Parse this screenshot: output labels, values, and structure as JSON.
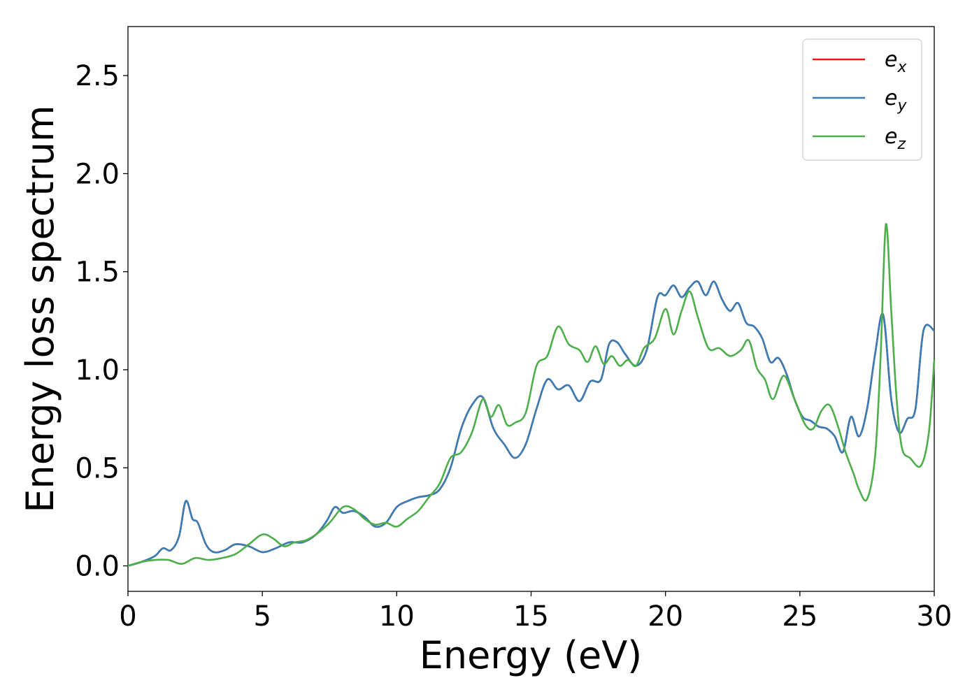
{
  "chart_data": {
    "type": "line",
    "xlabel": "Energy (eV)",
    "ylabel": "Energy loss spectrum",
    "xlim": [
      0,
      30
    ],
    "ylim": [
      -0.13,
      2.75
    ],
    "xticks": [
      0,
      5,
      10,
      15,
      20,
      25,
      30
    ],
    "xtick_labels": [
      "0",
      "5",
      "10",
      "15",
      "20",
      "25",
      "30"
    ],
    "yticks": [
      0.0,
      0.5,
      1.0,
      1.5,
      2.0,
      2.5
    ],
    "ytick_labels": [
      "0.0",
      "0.5",
      "1.0",
      "1.5",
      "2.0",
      "2.5"
    ],
    "grid": false,
    "legend_position": "top-right",
    "series": [
      {
        "name": "e",
        "sub": "x",
        "color": "#e41a1c",
        "x": [
          0,
          0.5,
          1,
          1.3,
          1.6,
          1.9,
          2.15,
          2.4,
          2.6,
          2.9,
          3.2,
          3.6,
          4,
          4.5,
          5,
          5.5,
          6,
          6.5,
          7,
          7.4,
          7.7,
          8,
          8.4,
          8.8,
          9.2,
          9.6,
          10,
          10.4,
          10.8,
          11.2,
          11.6,
          12,
          12.4,
          12.8,
          13.2,
          13.6,
          14,
          14.4,
          14.8,
          15.2,
          15.6,
          16,
          16.4,
          16.8,
          17.2,
          17.6,
          17.9,
          18.2,
          18.5,
          18.9,
          19.3,
          19.7,
          20,
          20.3,
          20.6,
          20.9,
          21.2,
          21.5,
          21.8,
          22.1,
          22.4,
          22.7,
          23,
          23.3,
          23.6,
          23.9,
          24.2,
          24.5,
          24.8,
          25.1,
          25.4,
          25.7,
          26,
          26.3,
          26.6,
          26.9,
          27.2,
          27.5,
          27.8,
          28.1,
          28.4,
          28.7,
          29,
          29.3,
          29.6,
          30
        ],
        "y": [
          0,
          0.02,
          0.05,
          0.09,
          0.08,
          0.15,
          0.33,
          0.24,
          0.22,
          0.11,
          0.07,
          0.08,
          0.11,
          0.1,
          0.07,
          0.09,
          0.12,
          0.12,
          0.16,
          0.23,
          0.3,
          0.27,
          0.28,
          0.25,
          0.2,
          0.22,
          0.3,
          0.33,
          0.35,
          0.36,
          0.39,
          0.5,
          0.7,
          0.82,
          0.86,
          0.7,
          0.62,
          0.55,
          0.62,
          0.8,
          0.95,
          0.9,
          0.92,
          0.84,
          0.94,
          0.95,
          1.13,
          1.14,
          1.08,
          1.02,
          1.1,
          1.37,
          1.38,
          1.43,
          1.37,
          1.42,
          1.45,
          1.38,
          1.45,
          1.36,
          1.3,
          1.34,
          1.24,
          1.22,
          1.16,
          1.04,
          1.06,
          0.98,
          0.85,
          0.76,
          0.74,
          0.71,
          0.7,
          0.66,
          0.58,
          0.76,
          0.66,
          0.8,
          1.08,
          1.28,
          0.85,
          0.68,
          0.75,
          0.8,
          1.2,
          1.2
        ]
      },
      {
        "name": "e",
        "sub": "y",
        "color": "#377eb8",
        "x": [
          0,
          0.5,
          1,
          1.3,
          1.6,
          1.9,
          2.15,
          2.4,
          2.6,
          2.9,
          3.2,
          3.6,
          4,
          4.5,
          5,
          5.5,
          6,
          6.5,
          7,
          7.4,
          7.7,
          8,
          8.4,
          8.8,
          9.2,
          9.6,
          10,
          10.4,
          10.8,
          11.2,
          11.6,
          12,
          12.4,
          12.8,
          13.2,
          13.6,
          14,
          14.4,
          14.8,
          15.2,
          15.6,
          16,
          16.4,
          16.8,
          17.2,
          17.6,
          17.9,
          18.2,
          18.5,
          18.9,
          19.3,
          19.7,
          20,
          20.3,
          20.6,
          20.9,
          21.2,
          21.5,
          21.8,
          22.1,
          22.4,
          22.7,
          23,
          23.3,
          23.6,
          23.9,
          24.2,
          24.5,
          24.8,
          25.1,
          25.4,
          25.7,
          26,
          26.3,
          26.6,
          26.9,
          27.2,
          27.5,
          27.8,
          28.1,
          28.4,
          28.7,
          29,
          29.3,
          29.6,
          30
        ],
        "y": [
          0,
          0.02,
          0.05,
          0.09,
          0.08,
          0.15,
          0.33,
          0.24,
          0.22,
          0.11,
          0.07,
          0.08,
          0.11,
          0.1,
          0.07,
          0.09,
          0.12,
          0.12,
          0.16,
          0.23,
          0.3,
          0.27,
          0.28,
          0.25,
          0.2,
          0.22,
          0.3,
          0.33,
          0.35,
          0.36,
          0.39,
          0.5,
          0.7,
          0.82,
          0.86,
          0.7,
          0.62,
          0.55,
          0.62,
          0.8,
          0.95,
          0.9,
          0.92,
          0.84,
          0.94,
          0.95,
          1.13,
          1.14,
          1.08,
          1.02,
          1.1,
          1.37,
          1.38,
          1.43,
          1.37,
          1.42,
          1.45,
          1.38,
          1.45,
          1.36,
          1.3,
          1.34,
          1.24,
          1.22,
          1.16,
          1.04,
          1.06,
          0.98,
          0.85,
          0.76,
          0.74,
          0.71,
          0.7,
          0.66,
          0.58,
          0.76,
          0.66,
          0.8,
          1.08,
          1.28,
          0.85,
          0.68,
          0.75,
          0.8,
          1.2,
          1.2
        ]
      },
      {
        "name": "e",
        "sub": "z",
        "color": "#4daf4a",
        "x": [
          0,
          0.5,
          1,
          1.5,
          2,
          2.5,
          3,
          3.5,
          4,
          4.5,
          5,
          5.4,
          5.8,
          6.2,
          6.6,
          7,
          7.5,
          8,
          8.4,
          8.8,
          9.2,
          9.6,
          10,
          10.4,
          10.8,
          11.2,
          11.6,
          12,
          12.4,
          12.8,
          13.2,
          13.5,
          13.8,
          14.1,
          14.4,
          14.8,
          15.2,
          15.6,
          16,
          16.4,
          16.8,
          17.1,
          17.4,
          17.7,
          18,
          18.3,
          18.6,
          18.9,
          19.2,
          19.6,
          20,
          20.3,
          20.6,
          20.9,
          21.2,
          21.6,
          22,
          22.4,
          22.8,
          23.1,
          23.4,
          23.7,
          24,
          24.4,
          24.8,
          25.2,
          25.5,
          25.8,
          26.1,
          26.4,
          26.7,
          27,
          27.2,
          27.5,
          27.8,
          28,
          28.2,
          28.4,
          28.6,
          28.8,
          29.1,
          29.5,
          29.8,
          30
        ],
        "y": [
          0,
          0.02,
          0.03,
          0.03,
          0.01,
          0.04,
          0.03,
          0.04,
          0.06,
          0.11,
          0.16,
          0.14,
          0.1,
          0.12,
          0.13,
          0.16,
          0.22,
          0.3,
          0.29,
          0.24,
          0.21,
          0.22,
          0.2,
          0.24,
          0.28,
          0.35,
          0.42,
          0.55,
          0.58,
          0.68,
          0.85,
          0.76,
          0.82,
          0.72,
          0.73,
          0.78,
          1.02,
          1.07,
          1.22,
          1.13,
          1.1,
          1.04,
          1.12,
          1.03,
          1.07,
          1.02,
          1.05,
          1.02,
          1.11,
          1.16,
          1.31,
          1.18,
          1.3,
          1.4,
          1.27,
          1.11,
          1.11,
          1.07,
          1.1,
          1.15,
          1.01,
          0.95,
          0.85,
          0.97,
          0.85,
          0.72,
          0.7,
          0.79,
          0.82,
          0.72,
          0.58,
          0.47,
          0.39,
          0.34,
          0.56,
          1.05,
          1.74,
          1.3,
          0.85,
          0.6,
          0.55,
          0.51,
          0.68,
          1.05
        ]
      }
    ]
  }
}
